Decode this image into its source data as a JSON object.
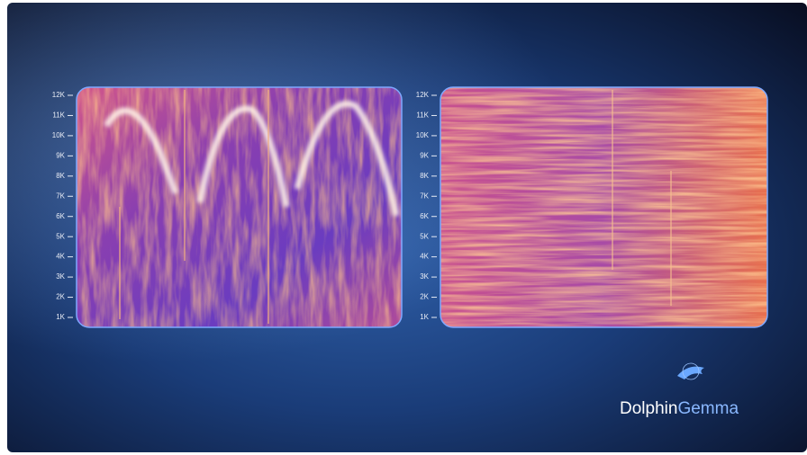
{
  "panels": [
    {
      "ticks": [
        "12K",
        "11K",
        "10K",
        "9K",
        "8K",
        "7K",
        "6K",
        "5K",
        "4K",
        "3K",
        "2K",
        "1K"
      ]
    },
    {
      "ticks": [
        "12K",
        "11K",
        "10K",
        "9K",
        "8K",
        "7K",
        "6K",
        "5K",
        "4K",
        "3K",
        "2K",
        "1K"
      ]
    }
  ],
  "logo": {
    "name_first": "Dolphin",
    "name_second": "Gemma"
  }
}
